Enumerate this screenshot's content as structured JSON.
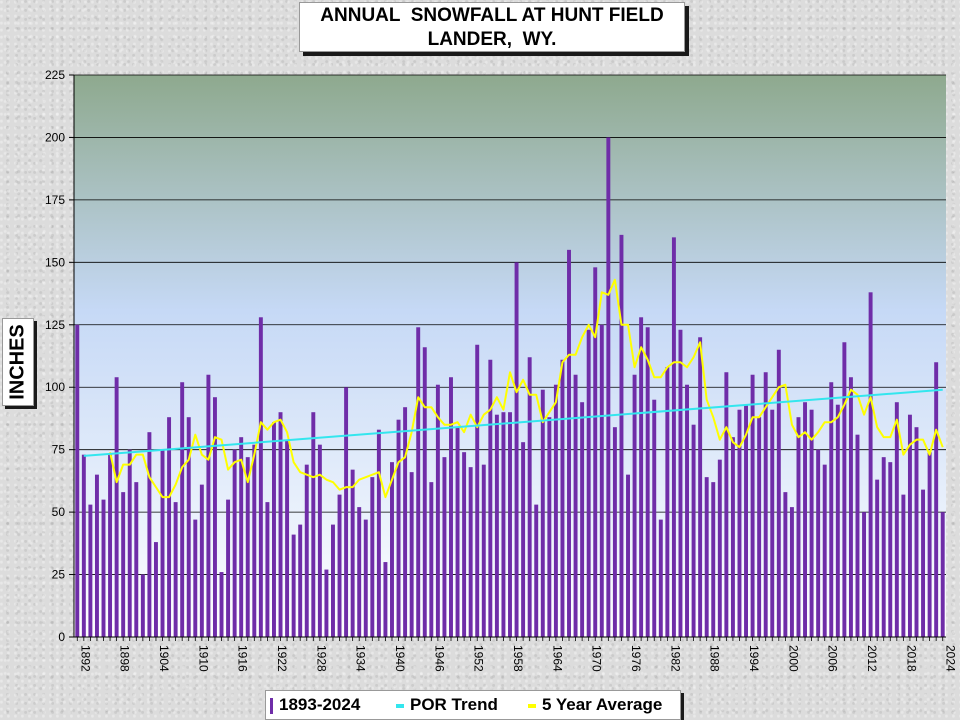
{
  "chart_data": {
    "type": "bar",
    "title": "ANNUAL  SNOWFALL AT HUNT FIELD",
    "subtitle": "LANDER,  WY.",
    "ylabel": "INCHES",
    "ylim": [
      0,
      225
    ],
    "yticks": [
      0,
      25,
      50,
      75,
      100,
      125,
      150,
      175,
      200,
      225
    ],
    "xticks": [
      1892,
      1898,
      1904,
      1910,
      1916,
      1922,
      1928,
      1934,
      1940,
      1946,
      1952,
      1958,
      1964,
      1970,
      1976,
      1982,
      1988,
      1994,
      2000,
      2006,
      2012,
      2018,
      2024
    ],
    "x_start": 1892,
    "x_end": 2024,
    "grid": true,
    "legend_position": "bottom",
    "colors": {
      "bars": "#6f2da8",
      "trend": "#33e6ee",
      "average": "#ffff00",
      "plot_top": "#8ea98e",
      "plot_bottom": "#ffffff"
    },
    "series": [
      {
        "name": "1893-2024",
        "type": "bar",
        "x": [
          1892,
          1893,
          1894,
          1895,
          1896,
          1897,
          1898,
          1899,
          1900,
          1901,
          1902,
          1903,
          1904,
          1905,
          1906,
          1907,
          1908,
          1909,
          1910,
          1911,
          1912,
          1913,
          1914,
          1915,
          1916,
          1917,
          1918,
          1919,
          1920,
          1921,
          1922,
          1923,
          1924,
          1925,
          1926,
          1927,
          1928,
          1929,
          1930,
          1931,
          1932,
          1933,
          1934,
          1935,
          1936,
          1937,
          1938,
          1939,
          1940,
          1941,
          1942,
          1943,
          1944,
          1945,
          1946,
          1947,
          1948,
          1949,
          1950,
          1951,
          1952,
          1953,
          1954,
          1955,
          1956,
          1957,
          1958,
          1959,
          1960,
          1961,
          1962,
          1963,
          1964,
          1965,
          1966,
          1967,
          1968,
          1969,
          1970,
          1971,
          1972,
          1973,
          1974,
          1975,
          1976,
          1977,
          1978,
          1979,
          1980,
          1981,
          1982,
          1983,
          1984,
          1985,
          1986,
          1987,
          1988,
          1989,
          1990,
          1991,
          1992,
          1993,
          1994,
          1995,
          1996,
          1997,
          1998,
          1999,
          2000,
          2001,
          2002,
          2003,
          2004,
          2005,
          2006,
          2007,
          2008,
          2009,
          2010,
          2011,
          2012,
          2013,
          2014,
          2015,
          2016,
          2017,
          2018,
          2019,
          2020,
          2021,
          2022,
          2023,
          2024
        ],
        "values": [
          125,
          73,
          53,
          65,
          55,
          73,
          104,
          58,
          75,
          62,
          25,
          82,
          38,
          75,
          88,
          54,
          102,
          88,
          47,
          61,
          105,
          96,
          26,
          55,
          75,
          80,
          72,
          77,
          128,
          54,
          86,
          90,
          79,
          41,
          45,
          69,
          90,
          77,
          27,
          45,
          57,
          100,
          67,
          52,
          47,
          64,
          83,
          30,
          70,
          87,
          92,
          66,
          124,
          116,
          62,
          101,
          72,
          104,
          84,
          74,
          68,
          117,
          69,
          111,
          89,
          90,
          90,
          150,
          78,
          112,
          53,
          99,
          88,
          101,
          111,
          155,
          105,
          94,
          123,
          148,
          125,
          200,
          84,
          161,
          65,
          105,
          128,
          124,
          95,
          47,
          108,
          160,
          123,
          101,
          85,
          120,
          64,
          62,
          71,
          106,
          80,
          91,
          93,
          105,
          88,
          106,
          91,
          115,
          58,
          52,
          88,
          94,
          91,
          75,
          69,
          102,
          93,
          118,
          104,
          81,
          50,
          138,
          63,
          72,
          70,
          94,
          57,
          89,
          84,
          59,
          74,
          110,
          50
        ]
      },
      {
        "name": "POR Trend",
        "type": "line",
        "x": [
          1893,
          2024
        ],
        "values": [
          72.5,
          99
        ]
      },
      {
        "name": "5 Year Average",
        "type": "line",
        "x": [
          1897,
          1898,
          1899,
          1900,
          1901,
          1902,
          1903,
          1904,
          1905,
          1906,
          1907,
          1908,
          1909,
          1910,
          1911,
          1912,
          1913,
          1914,
          1915,
          1916,
          1917,
          1918,
          1919,
          1920,
          1921,
          1922,
          1923,
          1924,
          1925,
          1926,
          1927,
          1928,
          1929,
          1930,
          1931,
          1932,
          1933,
          1934,
          1935,
          1936,
          1937,
          1938,
          1939,
          1940,
          1941,
          1942,
          1943,
          1944,
          1945,
          1946,
          1947,
          1948,
          1949,
          1950,
          1951,
          1952,
          1953,
          1954,
          1955,
          1956,
          1957,
          1958,
          1959,
          1960,
          1961,
          1962,
          1963,
          1964,
          1965,
          1966,
          1967,
          1968,
          1969,
          1970,
          1971,
          1972,
          1973,
          1974,
          1975,
          1976,
          1977,
          1978,
          1979,
          1980,
          1981,
          1982,
          1983,
          1984,
          1985,
          1986,
          1987,
          1988,
          1989,
          1990,
          1991,
          1992,
          1993,
          1994,
          1995,
          1996,
          1997,
          1998,
          1999,
          2000,
          2001,
          2002,
          2003,
          2004,
          2005,
          2006,
          2007,
          2008,
          2009,
          2010,
          2011,
          2012,
          2013,
          2014,
          2015,
          2016,
          2017,
          2018,
          2019,
          2020,
          2021,
          2022,
          2023,
          2024
        ],
        "values": [
          74,
          62,
          69,
          69,
          73,
          73,
          64,
          60,
          56,
          56,
          61,
          68,
          71,
          81,
          73,
          71,
          80,
          79,
          67,
          70,
          71,
          62,
          73,
          86,
          83,
          86,
          87,
          82,
          70,
          66,
          65,
          64,
          65,
          63,
          62,
          59,
          60,
          60,
          63,
          64,
          65,
          66,
          56,
          63,
          70,
          72,
          82,
          96,
          92,
          92,
          88,
          85,
          85,
          86,
          82,
          89,
          84,
          89,
          91,
          96,
          91,
          106,
          98,
          103,
          97,
          97,
          86,
          90,
          94,
          110,
          113,
          113,
          120,
          125,
          120,
          138,
          137,
          143,
          125,
          125,
          108,
          116,
          111,
          104,
          104,
          108,
          110,
          110,
          108,
          112,
          118,
          95,
          88,
          79,
          84,
          78,
          76,
          81,
          88,
          88,
          92,
          96,
          100,
          101,
          85,
          80,
          82,
          79,
          82,
          86,
          86,
          88,
          93,
          99,
          97,
          89,
          96,
          84,
          80,
          80,
          87,
          73,
          77,
          79,
          79,
          73,
          83,
          76
        ]
      }
    ]
  }
}
